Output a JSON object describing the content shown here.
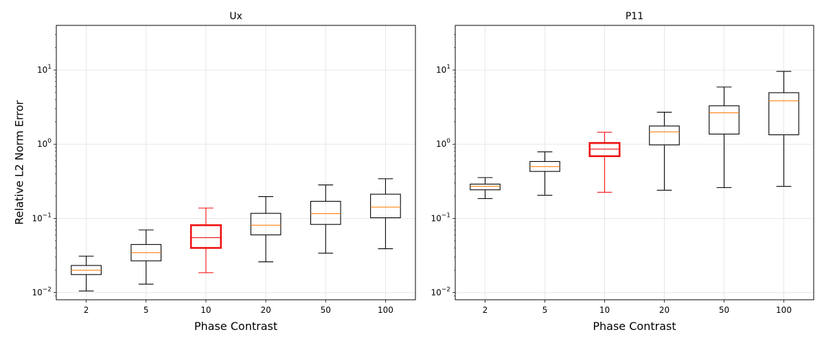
{
  "chart_data": [
    {
      "type": "box",
      "title": "Ux",
      "xlabel": "Phase Contrast",
      "ylabel": "Relative L2 Norm Error",
      "yscale": "log",
      "ylim": [
        0.008,
        40
      ],
      "grid": true,
      "categories": [
        "2",
        "5",
        "10",
        "20",
        "50",
        "100"
      ],
      "highlight_category": "10",
      "yticks": [
        {
          "label": "10",
          "exp": "−2"
        },
        {
          "label": "10",
          "exp": "−1"
        },
        {
          "label": "10",
          "exp": "0"
        },
        {
          "label": "10",
          "exp": "1"
        }
      ],
      "boxes": [
        {
          "whisker_low": 0.0105,
          "q1": 0.0175,
          "median": 0.02,
          "q3": 0.0232,
          "whisker_high": 0.031
        },
        {
          "whisker_low": 0.013,
          "q1": 0.0268,
          "median": 0.0345,
          "q3": 0.0445,
          "whisker_high": 0.07
        },
        {
          "whisker_low": 0.0185,
          "q1": 0.04,
          "median": 0.055,
          "q3": 0.081,
          "whisker_high": 0.138
        },
        {
          "whisker_low": 0.026,
          "q1": 0.06,
          "median": 0.081,
          "q3": 0.117,
          "whisker_high": 0.197
        },
        {
          "whisker_low": 0.034,
          "q1": 0.083,
          "median": 0.116,
          "q3": 0.17,
          "whisker_high": 0.283
        },
        {
          "whisker_low": 0.039,
          "q1": 0.102,
          "median": 0.142,
          "q3": 0.212,
          "whisker_high": 0.342
        }
      ]
    },
    {
      "type": "box",
      "title": "P11",
      "xlabel": "Phase Contrast",
      "ylabel": "",
      "yscale": "log",
      "ylim": [
        0.008,
        40
      ],
      "grid": true,
      "categories": [
        "2",
        "5",
        "10",
        "20",
        "50",
        "100"
      ],
      "highlight_category": "10",
      "yticks": [
        {
          "label": "10",
          "exp": "−2"
        },
        {
          "label": "10",
          "exp": "−1"
        },
        {
          "label": "10",
          "exp": "0"
        },
        {
          "label": "10",
          "exp": "1"
        }
      ],
      "boxes": [
        {
          "whisker_low": 0.185,
          "q1": 0.243,
          "median": 0.272,
          "q3": 0.29,
          "whisker_high": 0.355
        },
        {
          "whisker_low": 0.205,
          "q1": 0.43,
          "median": 0.5,
          "q3": 0.585,
          "whisker_high": 0.79
        },
        {
          "whisker_low": 0.225,
          "q1": 0.69,
          "median": 0.86,
          "q3": 1.04,
          "whisker_high": 1.45
        },
        {
          "whisker_low": 0.24,
          "q1": 0.98,
          "median": 1.47,
          "q3": 1.76,
          "whisker_high": 2.7
        },
        {
          "whisker_low": 0.26,
          "q1": 1.37,
          "median": 2.65,
          "q3": 3.3,
          "whisker_high": 5.9
        },
        {
          "whisker_low": 0.27,
          "q1": 1.34,
          "median": 3.85,
          "q3": 4.95,
          "whisker_high": 9.6
        }
      ]
    }
  ],
  "colors": {
    "box": "#000000",
    "highlight": "#ee1111",
    "median": "#ff7f0e",
    "grid": "#e0e0e0"
  }
}
